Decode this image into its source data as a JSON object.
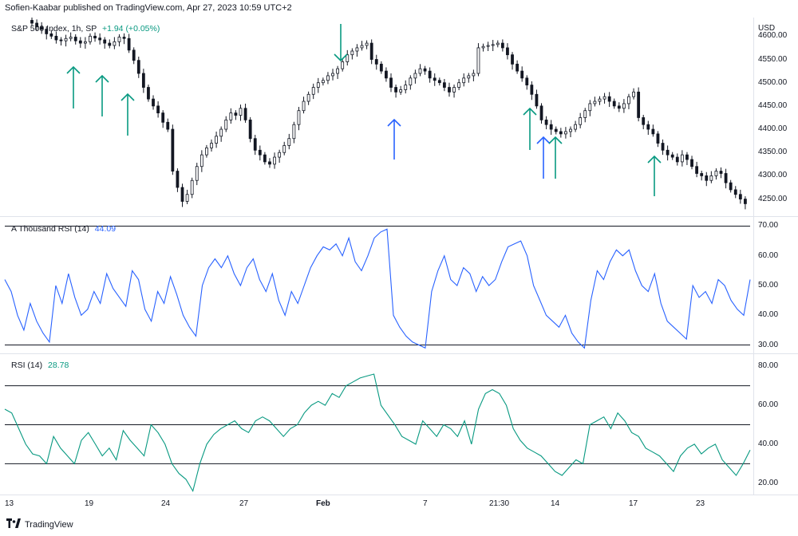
{
  "header": {
    "published": "Sofien-Kaabar published on TradingView.com, Apr 27, 2023 10:59 UTC+2"
  },
  "price_pane": {
    "legend_label": "S&P 500 Index, 1h, SP",
    "legend_change": "+1.94 (+0.05%)",
    "currency": "USD",
    "y_ticks": [
      "4600.00",
      "4550.00",
      "4500.00",
      "4450.00",
      "4400.00",
      "4350.00",
      "4300.00",
      "4250.00"
    ]
  },
  "rsi1000_pane": {
    "legend_label": "A Thousand RSI (14)",
    "legend_value": "44.09",
    "y_ticks": [
      "70.00",
      "60.00",
      "50.00",
      "40.00",
      "30.00"
    ]
  },
  "rsi_pane": {
    "legend_label": "RSI (14)",
    "legend_value": "28.78",
    "y_ticks": [
      "80.00",
      "60.00",
      "40.00",
      "20.00"
    ]
  },
  "x_ticks": [
    "13",
    "19",
    "24",
    "27",
    "Feb",
    "7",
    "21:30",
    "14",
    "17",
    "23"
  ],
  "footer": {
    "brand": "TradingView"
  },
  "colors": {
    "up": "#089981",
    "down": "#f23645",
    "candle": "#131722",
    "arrow_green": "#089981",
    "arrow_blue": "#2962ff",
    "rsi1000_line": "#2962ff",
    "rsi_line": "#089981",
    "level": "#131722"
  },
  "chart_data": [
    {
      "type": "candlestick",
      "title": "S&P 500 Index, 1h, SP",
      "ylim": [
        4215,
        4640
      ],
      "close": [
        4628,
        4620,
        4615,
        4605,
        4600,
        4592,
        4590,
        4595,
        4598,
        4590,
        4585,
        4588,
        4600,
        4596,
        4592,
        4585,
        4580,
        4588,
        4598,
        4595,
        4570,
        4548,
        4520,
        4490,
        4465,
        4450,
        4435,
        4415,
        4400,
        4310,
        4275,
        4245,
        4260,
        4290,
        4320,
        4345,
        4360,
        4370,
        4385,
        4400,
        4420,
        4435,
        4430,
        4445,
        4420,
        4380,
        4355,
        4345,
        4330,
        4325,
        4340,
        4350,
        4365,
        4380,
        4410,
        4440,
        4460,
        4475,
        4490,
        4500,
        4505,
        4515,
        4520,
        4530,
        4545,
        4560,
        4568,
        4575,
        4580,
        4585,
        4550,
        4540,
        4525,
        4510,
        4490,
        4480,
        4485,
        4495,
        4510,
        4520,
        4530,
        4525,
        4510,
        4505,
        4500,
        4490,
        4480,
        4490,
        4500,
        4510,
        4515,
        4520,
        4575,
        4578,
        4580,
        4582,
        4585,
        4575,
        4560,
        4540,
        4525,
        4510,
        4495,
        4475,
        4450,
        4420,
        4410,
        4400,
        4395,
        4390,
        4395,
        4400,
        4410,
        4425,
        4440,
        4455,
        4460,
        4465,
        4470,
        4460,
        4450,
        4445,
        4455,
        4470,
        4480,
        4425,
        4410,
        4400,
        4390,
        4370,
        4355,
        4345,
        4340,
        4330,
        4345,
        4335,
        4320,
        4305,
        4300,
        4290,
        4300,
        4310,
        4305,
        4285,
        4270,
        4260,
        4250,
        4240
      ]
    },
    {
      "type": "line",
      "title": "A Thousand RSI (14)",
      "ylim": [
        28,
        72
      ],
      "levels": [
        70,
        30
      ],
      "values": [
        52,
        48,
        40,
        35,
        44,
        38,
        34,
        31,
        50,
        44,
        54,
        46,
        40,
        42,
        48,
        44,
        54,
        49,
        46,
        43,
        55,
        52,
        42,
        38,
        48,
        44,
        53,
        47,
        40,
        36,
        33,
        50,
        56,
        59,
        56,
        60,
        54,
        50,
        56,
        59,
        52,
        48,
        54,
        45,
        40,
        48,
        44,
        50,
        56,
        60,
        63,
        62,
        64,
        60,
        66,
        58,
        55,
        60,
        66,
        68,
        69,
        40,
        36,
        33,
        31,
        30,
        29,
        48,
        55,
        60,
        52,
        50,
        56,
        54,
        48,
        53,
        50,
        52,
        58,
        63,
        64,
        65,
        60,
        50,
        45,
        40,
        38,
        36,
        40,
        34,
        31,
        29,
        45,
        55,
        52,
        58,
        62,
        60,
        62,
        55,
        50,
        48,
        54,
        44,
        38,
        36,
        34,
        32,
        50,
        46,
        48,
        44,
        52,
        50,
        45,
        42,
        40,
        52
      ]
    },
    {
      "type": "line",
      "title": "RSI (14)",
      "ylim": [
        15,
        85
      ],
      "levels": [
        70,
        50,
        30
      ],
      "values": [
        58,
        56,
        48,
        40,
        35,
        34,
        30,
        44,
        38,
        34,
        30,
        42,
        46,
        40,
        34,
        38,
        32,
        47,
        42,
        38,
        34,
        50,
        46,
        40,
        30,
        25,
        22,
        16,
        30,
        40,
        45,
        48,
        50,
        52,
        48,
        46,
        52,
        54,
        52,
        48,
        44,
        48,
        50,
        56,
        60,
        62,
        60,
        66,
        64,
        70,
        72,
        74,
        75,
        76,
        60,
        55,
        50,
        44,
        42,
        40,
        52,
        48,
        44,
        50,
        48,
        44,
        52,
        40,
        58,
        66,
        68,
        66,
        60,
        48,
        42,
        38,
        36,
        34,
        30,
        26,
        24,
        28,
        32,
        30,
        50,
        52,
        54,
        48,
        56,
        52,
        46,
        44,
        38,
        36,
        34,
        30,
        26,
        34,
        38,
        40,
        35,
        38,
        40,
        32,
        28,
        24,
        30,
        37
      ]
    }
  ]
}
